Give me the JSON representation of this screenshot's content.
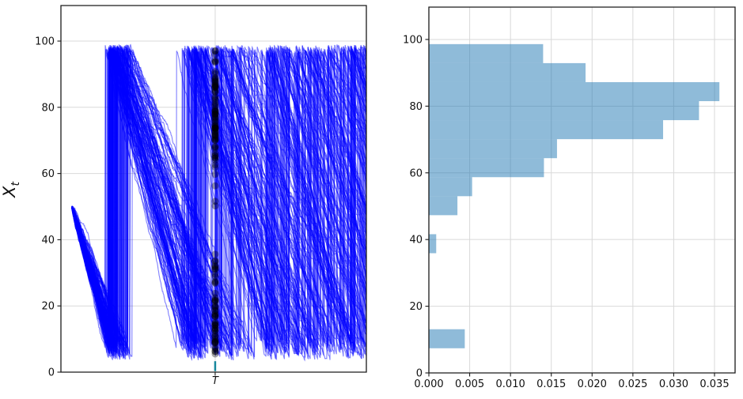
{
  "figure": {
    "background": "#ffffff",
    "grid_color": "#d9d9d9",
    "spine_color": "#1a1a1a",
    "text_color": "#111111"
  },
  "chart_data": [
    {
      "type": "line",
      "name": "trajectory-ensemble",
      "description": "Ensemble of sawtooth stochastic process paths X_t: start at 50, drift down with noise, reset to ~98 when hitting a low boundary ~4-10; black dots mark each path value at time T; small teal dash near (T, 0-3).",
      "ylabel_main": "X",
      "ylabel_sub": "t",
      "xtick_labels": [
        "T"
      ],
      "ytick_values": [
        0,
        20,
        40,
        60,
        80,
        100
      ],
      "ylim": [
        0,
        110.74
      ],
      "T_fraction": 0.505,
      "data_start_fraction": 0.035,
      "line_color": "#0000ff",
      "line_alpha": 0.5,
      "line_width": 1.1,
      "scatter_color": "#000000",
      "scatter_alpha": 0.35,
      "scatter_radius": 4.5,
      "teal_marker": {
        "color": "#17879c",
        "value_low": 0.3,
        "value_high": 3.3,
        "width": 2.5
      },
      "simulation": {
        "seed": 42,
        "n_paths": 130,
        "steps": 640,
        "start_value": 50,
        "base_rate": 295,
        "rate_k_init": 45,
        "rate_drift": 8,
        "rate_k_max": 80,
        "jitter": 0.55,
        "low_min": 3.5,
        "low_span": 6.0,
        "high_min": 96.4,
        "high_span": 2.4
      }
    },
    {
      "type": "bar",
      "name": "density-histogram-of-X-at-T",
      "orientation": "horizontal",
      "bin_edges": [
        7.4,
        13.1,
        18.8,
        24.5,
        30.2,
        35.9,
        41.6,
        47.3,
        53.0,
        58.7,
        64.4,
        70.1,
        75.8,
        81.5,
        87.2,
        92.9,
        98.6
      ],
      "densities": [
        0.0044,
        0,
        0,
        0,
        0,
        0.0009,
        0,
        0.0035,
        0.0053,
        0.0141,
        0.0157,
        0.0287,
        0.0331,
        0.0356,
        0.0192,
        0.014
      ],
      "xtick_labels": [
        "0.000",
        "0.005",
        "0.010",
        "0.015",
        "0.020",
        "0.025",
        "0.030",
        "0.035"
      ],
      "xtick_values": [
        0.0,
        0.005,
        0.01,
        0.015,
        0.02,
        0.025,
        0.03,
        0.035
      ],
      "ytick_values": [
        0,
        20,
        40,
        60,
        80,
        100
      ],
      "xlim": [
        0,
        0.037521
      ],
      "ylim": [
        0,
        109.7
      ],
      "bar_color": "#1f77b4",
      "bar_alpha": 0.5,
      "grid": true
    }
  ]
}
